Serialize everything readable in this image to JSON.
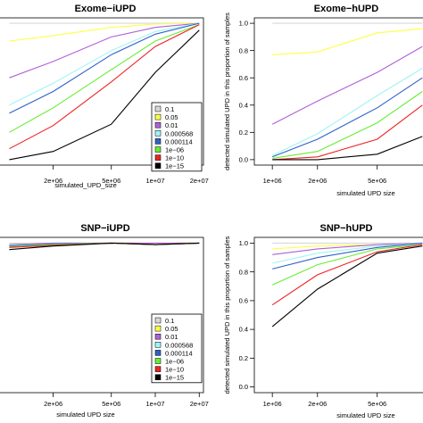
{
  "chart_data": [
    {
      "type": "line",
      "title": "Exome−iUPD",
      "xlabel": "simulated_UPD_size",
      "ylabel": "",
      "x_scale": "log",
      "x_ticks": [
        "2e+06",
        "5e+06",
        "1e+07",
        "2e+07"
      ],
      "y_ticks": [],
      "legend": "bottom-right",
      "legend_entries": [
        "0.1",
        "0.05",
        "0.01",
        "0.000568",
        "0.000114",
        "1e−06",
        "1e−10",
        "1e−15"
      ],
      "x": [
        1000000,
        2000000,
        5000000,
        10000000,
        20000000
      ],
      "series": [
        {
          "name": "0.1",
          "color": "#d8d8d8",
          "values": [
            1.0,
            1.0,
            1.0,
            1.0,
            1.0
          ]
        },
        {
          "name": "0.05",
          "color": "#ffff44",
          "values": [
            0.87,
            0.91,
            0.97,
            0.995,
            1.0
          ]
        },
        {
          "name": "0.01",
          "color": "#b060d8",
          "values": [
            0.6,
            0.72,
            0.9,
            0.97,
            1.0
          ]
        },
        {
          "name": "0.000568",
          "color": "#9ff4f4",
          "values": [
            0.4,
            0.56,
            0.8,
            0.94,
            1.0
          ]
        },
        {
          "name": "0.000114",
          "color": "#3060c8",
          "values": [
            0.34,
            0.5,
            0.77,
            0.92,
            1.0
          ]
        },
        {
          "name": "1e−06",
          "color": "#66ee33",
          "values": [
            0.2,
            0.38,
            0.66,
            0.87,
            0.99
          ]
        },
        {
          "name": "1e−10",
          "color": "#ee2222",
          "values": [
            0.08,
            0.25,
            0.57,
            0.83,
            0.99
          ]
        },
        {
          "name": "1e−15",
          "color": "#000000",
          "values": [
            0.0,
            0.06,
            0.26,
            0.64,
            0.95
          ]
        }
      ]
    },
    {
      "type": "line",
      "title": "Exome−hUPD",
      "xlabel": "simulated UPD size",
      "ylabel": "detected simulated UPD in this proportion of samples",
      "x_scale": "log",
      "x_ticks": [
        "1e+06",
        "2e+06",
        "5e+06"
      ],
      "y_ticks": [
        "0.0",
        "0.2",
        "0.4",
        "0.6",
        "0.8",
        "1.0"
      ],
      "ylim": [
        0,
        1
      ],
      "x": [
        1000000,
        2000000,
        5000000,
        10000000
      ],
      "series": [
        {
          "name": "0.1",
          "color": "#d8d8d8",
          "values": [
            1.0,
            1.0,
            1.0,
            1.0
          ]
        },
        {
          "name": "0.05",
          "color": "#ffff44",
          "values": [
            0.77,
            0.79,
            0.93,
            0.96
          ]
        },
        {
          "name": "0.01",
          "color": "#b060d8",
          "values": [
            0.26,
            0.43,
            0.64,
            0.83
          ]
        },
        {
          "name": "0.000568",
          "color": "#9ff4f4",
          "values": [
            0.03,
            0.19,
            0.47,
            0.67
          ]
        },
        {
          "name": "0.000114",
          "color": "#3060c8",
          "values": [
            0.02,
            0.15,
            0.38,
            0.6
          ]
        },
        {
          "name": "1e−06",
          "color": "#66ee33",
          "values": [
            0.01,
            0.06,
            0.27,
            0.5
          ]
        },
        {
          "name": "1e−10",
          "color": "#ee2222",
          "values": [
            0.0,
            0.02,
            0.15,
            0.4
          ]
        },
        {
          "name": "1e−15",
          "color": "#000000",
          "values": [
            0.0,
            0.0,
            0.04,
            0.17
          ]
        }
      ]
    },
    {
      "type": "line",
      "title": "SNP−iUPD",
      "xlabel": "simulated UPD size",
      "ylabel": "",
      "x_scale": "log",
      "x_ticks": [
        "2e+06",
        "5e+06",
        "1e+07",
        "2e+07"
      ],
      "y_ticks": [],
      "legend": "bottom-right",
      "legend_entries": [
        "0.1",
        "0.05",
        "0.01",
        "0.000568",
        "0.000114",
        "1e−06",
        "1e−10",
        "1e−15"
      ],
      "x": [
        1000000,
        2000000,
        5000000,
        10000000,
        20000000
      ],
      "series": [
        {
          "name": "0.1",
          "color": "#d8d8d8",
          "values": [
            1.0,
            1.0,
            1.0,
            1.0,
            1.0
          ]
        },
        {
          "name": "0.05",
          "color": "#ffff44",
          "values": [
            0.99,
            1.0,
            1.0,
            1.0,
            1.0
          ]
        },
        {
          "name": "0.01",
          "color": "#b060d8",
          "values": [
            0.99,
            1.0,
            1.0,
            1.0,
            1.0
          ]
        },
        {
          "name": "0.000568",
          "color": "#9ff4f4",
          "values": [
            0.985,
            0.995,
            1.0,
            0.99,
            1.0
          ]
        },
        {
          "name": "0.000114",
          "color": "#3060c8",
          "values": [
            0.98,
            0.995,
            1.0,
            0.99,
            1.0
          ]
        },
        {
          "name": "1e−06",
          "color": "#66ee33",
          "values": [
            0.975,
            0.99,
            1.0,
            0.99,
            1.0
          ]
        },
        {
          "name": "1e−10",
          "color": "#ee2222",
          "values": [
            0.97,
            0.985,
            1.0,
            0.99,
            1.0
          ]
        },
        {
          "name": "1e−15",
          "color": "#000000",
          "values": [
            0.955,
            0.98,
            1.0,
            0.99,
            1.0
          ]
        }
      ]
    },
    {
      "type": "line",
      "title": "SNP−hUPD",
      "xlabel": "simulated UPD size",
      "ylabel": "detected simulated UPD in this proportion of samples",
      "x_scale": "log",
      "x_ticks": [
        "1e+06",
        "2e+06",
        "5e+06"
      ],
      "y_ticks": [
        "0.0",
        "0.2",
        "0.4",
        "0.6",
        "0.8",
        "1.0"
      ],
      "ylim": [
        0,
        1
      ],
      "x": [
        1000000,
        2000000,
        5000000,
        10000000
      ],
      "series": [
        {
          "name": "0.1",
          "color": "#d8d8d8",
          "values": [
            1.0,
            1.0,
            1.0,
            1.0
          ]
        },
        {
          "name": "0.05",
          "color": "#ffff44",
          "values": [
            0.96,
            0.98,
            0.99,
            1.0
          ]
        },
        {
          "name": "0.01",
          "color": "#b060d8",
          "values": [
            0.92,
            0.96,
            0.99,
            1.0
          ]
        },
        {
          "name": "0.000568",
          "color": "#9ff4f4",
          "values": [
            0.86,
            0.93,
            0.98,
            1.0
          ]
        },
        {
          "name": "0.000114",
          "color": "#3060c8",
          "values": [
            0.82,
            0.9,
            0.97,
            1.0
          ]
        },
        {
          "name": "1e−06",
          "color": "#66ee33",
          "values": [
            0.71,
            0.85,
            0.96,
            0.99
          ]
        },
        {
          "name": "1e−10",
          "color": "#ee2222",
          "values": [
            0.57,
            0.78,
            0.94,
            0.99
          ]
        },
        {
          "name": "1e−15",
          "color": "#000000",
          "values": [
            0.42,
            0.68,
            0.93,
            0.98
          ]
        }
      ]
    }
  ]
}
